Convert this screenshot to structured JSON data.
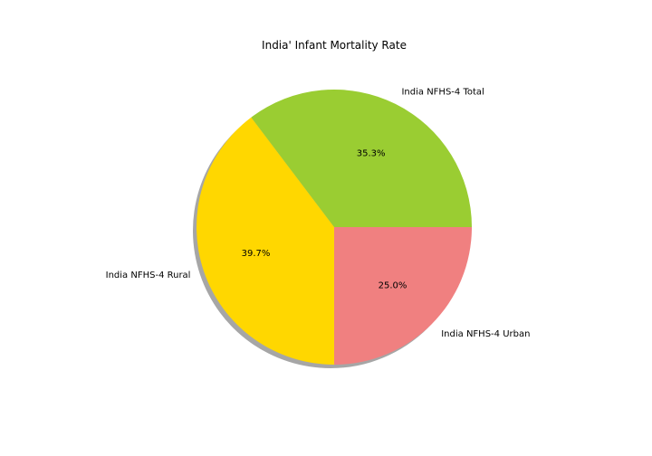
{
  "chart_data": {
    "type": "pie",
    "title": "India' Infant Mortality Rate",
    "labels": [
      "India NFHS-4 Total",
      "India NFHS-4 Rural",
      "India NFHS-4 Urban"
    ],
    "values": [
      35.3,
      39.7,
      25.0
    ],
    "percent_labels": [
      "35.3%",
      "39.7%",
      "25.0%"
    ],
    "colors": [
      "#9acd32",
      "#ffd700",
      "#f08080"
    ],
    "shadow": true,
    "start_angle_deg": 0,
    "direction": "counterclockwise"
  }
}
